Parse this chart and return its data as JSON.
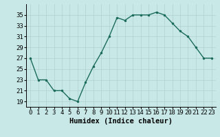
{
  "x": [
    0,
    1,
    2,
    3,
    4,
    5,
    6,
    7,
    8,
    9,
    10,
    11,
    12,
    13,
    14,
    15,
    16,
    17,
    18,
    19,
    20,
    21,
    22,
    23
  ],
  "y": [
    27,
    23,
    23,
    21,
    21,
    19.5,
    19,
    22.5,
    25.5,
    28,
    31,
    34.5,
    34,
    35,
    35,
    35,
    35.5,
    35,
    33.5,
    32,
    31,
    29,
    27,
    27
  ],
  "xlabel": "Humidex (Indice chaleur)",
  "ylim": [
    18,
    37
  ],
  "yticks": [
    19,
    21,
    23,
    25,
    27,
    29,
    31,
    33,
    35
  ],
  "xticks": [
    0,
    1,
    2,
    3,
    4,
    5,
    6,
    7,
    8,
    9,
    10,
    11,
    12,
    13,
    14,
    15,
    16,
    17,
    18,
    19,
    20,
    21,
    22,
    23
  ],
  "line_color": "#1a6b5a",
  "marker_color": "#1a6b5a",
  "bg_color": "#c8e8e8",
  "grid_color": "#b0d0d0",
  "xlabel_fontsize": 7.5,
  "tick_fontsize": 6.5
}
